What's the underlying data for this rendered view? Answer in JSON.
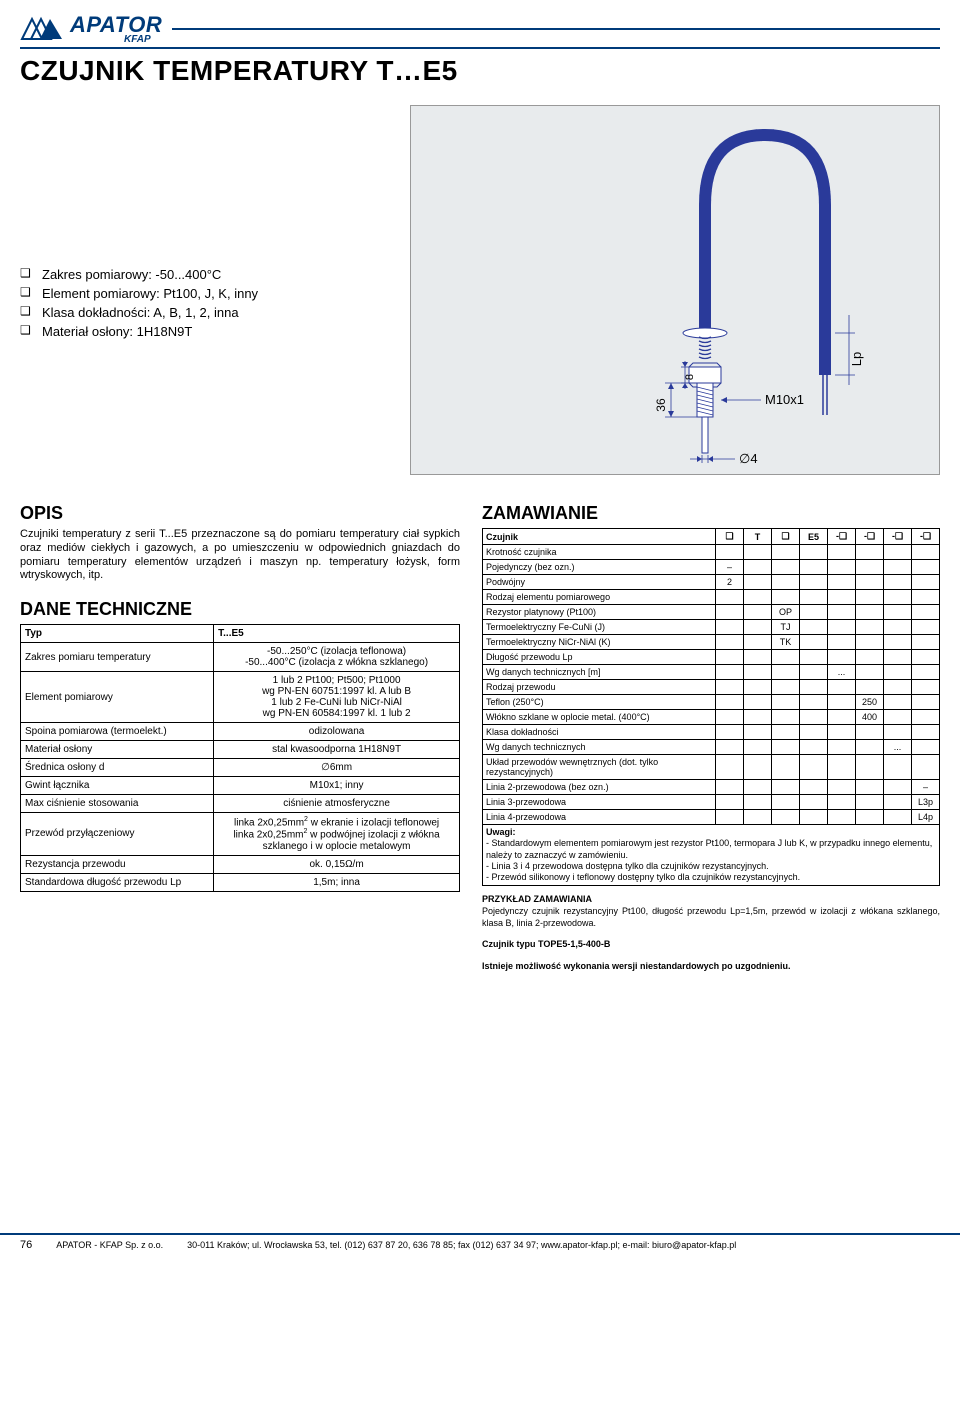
{
  "header": {
    "brand": "APATOR",
    "sub_brand": "KFAP",
    "brand_color": "#003b7a"
  },
  "title": "CZUJNIK TEMPERATURY T…E5",
  "bullets": [
    "Zakres pomiarowy: -50...400°C",
    "Element pomiarowy: Pt100, J, K, inny",
    "Klasa dokładności: A, B, 1, 2, inna",
    "Materiał osłony: 1H18N9T"
  ],
  "diagram": {
    "dim_36": "36",
    "dim_8": "8",
    "thread": "M10x1",
    "diameter": "∅4",
    "lead": "Lp",
    "bg": "#e8ebed",
    "stroke": "#2a3a9a"
  },
  "opis": {
    "title": "OPIS",
    "text": "Czujniki temperatury z serii T...E5 przeznaczone są do pomiaru temperatury ciał sypkich oraz mediów ciekłych i gazowych, a po umieszczeniu w odpowiednich gniazdach do pomiaru temperatury elementów urządzeń i maszyn np. temperatury łożysk, form wtryskowych, itp."
  },
  "tech": {
    "title": "DANE TECHNICZNE",
    "header_type": "Typ",
    "header_model": "T...E5",
    "rows": [
      {
        "label": "Zakres pomiaru temperatury",
        "value": "-50...250°C (izolacja teflonowa)\n-50...400°C (izolacja z włókna szklanego)"
      },
      {
        "label": "Element pomiarowy",
        "value": "1 lub 2 Pt100; Pt500; Pt1000\nwg PN-EN 60751:1997 kl. A lub B\n1 lub 2 Fe-CuNi lub NiCr-NiAl\nwg PN-EN 60584:1997 kl. 1 lub 2"
      },
      {
        "label": "Spoina pomiarowa (termoelekt.)",
        "value": "odizolowana"
      },
      {
        "label": "Materiał osłony",
        "value": "stal kwasoodporna 1H18N9T"
      },
      {
        "label": "Średnica osłony d",
        "value": "∅6mm"
      },
      {
        "label": "Gwint łącznika",
        "value": "M10x1; inny"
      },
      {
        "label": "Max ciśnienie stosowania",
        "value": "ciśnienie atmosferyczne"
      },
      {
        "label": "Przewód przyłączeniowy",
        "value": "linka 2x0,25mm² w ekranie i izolacji teflonowej\nlinka 2x0,25mm² w podwójnej izolacji z włókna szklanego i w oplocie metalowym"
      },
      {
        "label": "Rezystancja przewodu",
        "value": "ok. 0,15Ω/m"
      },
      {
        "label": "Standardowa długość przewodu Lp",
        "value": "1,5m; inna"
      }
    ]
  },
  "order": {
    "title": "ZAMAWIANIE",
    "head": {
      "label": "Czujnik",
      "codes": [
        "❑",
        "T",
        "❑",
        "E5",
        "-❑",
        "-❑",
        "-❑",
        "-❑"
      ]
    },
    "groups": [
      {
        "header": "Krotność czujnika",
        "rows": [
          {
            "label": "Pojedynczy (bez ozn.)",
            "col": 0,
            "code": "–"
          },
          {
            "label": "Podwójny",
            "col": 0,
            "code": "2"
          }
        ]
      },
      {
        "header": "Rodzaj elementu pomiarowego",
        "rows": [
          {
            "label": "Rezystor platynowy (Pt100)",
            "col": 2,
            "code": "OP"
          },
          {
            "label": "Termoelektryczny Fe-CuNi (J)",
            "col": 2,
            "code": "TJ"
          },
          {
            "label": "Termoelektryczny NiCr-NiAl (K)",
            "col": 2,
            "code": "TK"
          }
        ]
      },
      {
        "header": "Długość przewodu Lp",
        "rows": [
          {
            "label": "Wg danych technicznych [m]",
            "col": 4,
            "code": "..."
          }
        ]
      },
      {
        "header": "Rodzaj przewodu",
        "rows": [
          {
            "label": "Teflon (250°C)",
            "col": 5,
            "code": "250"
          },
          {
            "label": "Włókno szklane w oplocie metal. (400°C)",
            "col": 5,
            "code": "400"
          }
        ]
      },
      {
        "header": "Klasa dokładności",
        "rows": [
          {
            "label": "Wg danych technicznych",
            "col": 6,
            "code": "..."
          }
        ]
      },
      {
        "header": "Układ przewodów wewnętrznych (dot. tylko rezystancyjnych)",
        "rows": [
          {
            "label": "Linia 2-przewodowa (bez ozn.)",
            "col": 7,
            "code": "–"
          },
          {
            "label": "Linia 3-przewodowa",
            "col": 7,
            "code": "L3p"
          },
          {
            "label": "Linia 4-przewodowa",
            "col": 7,
            "code": "L4p"
          }
        ]
      }
    ],
    "remarks": {
      "title": "Uwagi:",
      "lines": [
        "- Standardowym elementem pomiarowym jest rezystor Pt100, termopara J lub K, w przypadku innego elementu, należy to zaznaczyć w zamówieniu.",
        "- Linia 3 i 4 przewodowa dostępna tylko dla czujników rezystancyjnych.",
        "- Przewód silikonowy i teflonowy dostępny tylko dla czujników rezystancyjnych."
      ]
    },
    "example": {
      "title": "PRZYKŁAD ZAMAWIANIA",
      "text": "Pojedynczy czujnik rezystancyjny Pt100, długość przewodu Lp=1,5m, przewód w izolacji z włókana szklanego, klasa B, linia 2-przewodowa.",
      "code": "Czujnik typu TOPE5-1,5-400-B",
      "footnote": "Istnieje możliwość wykonania wersji niestandardowych po uzgodnieniu."
    }
  },
  "footer": {
    "page": "76",
    "company": "APATOR - KFAP Sp. z o.o.",
    "address": "30-011 Kraków; ul. Wrocławska 53, tel. (012) 637 87 20, 636 78 85; fax (012) 637 34 97; www.apator-kfap.pl; e-mail: biuro@apator-kfap.pl"
  }
}
